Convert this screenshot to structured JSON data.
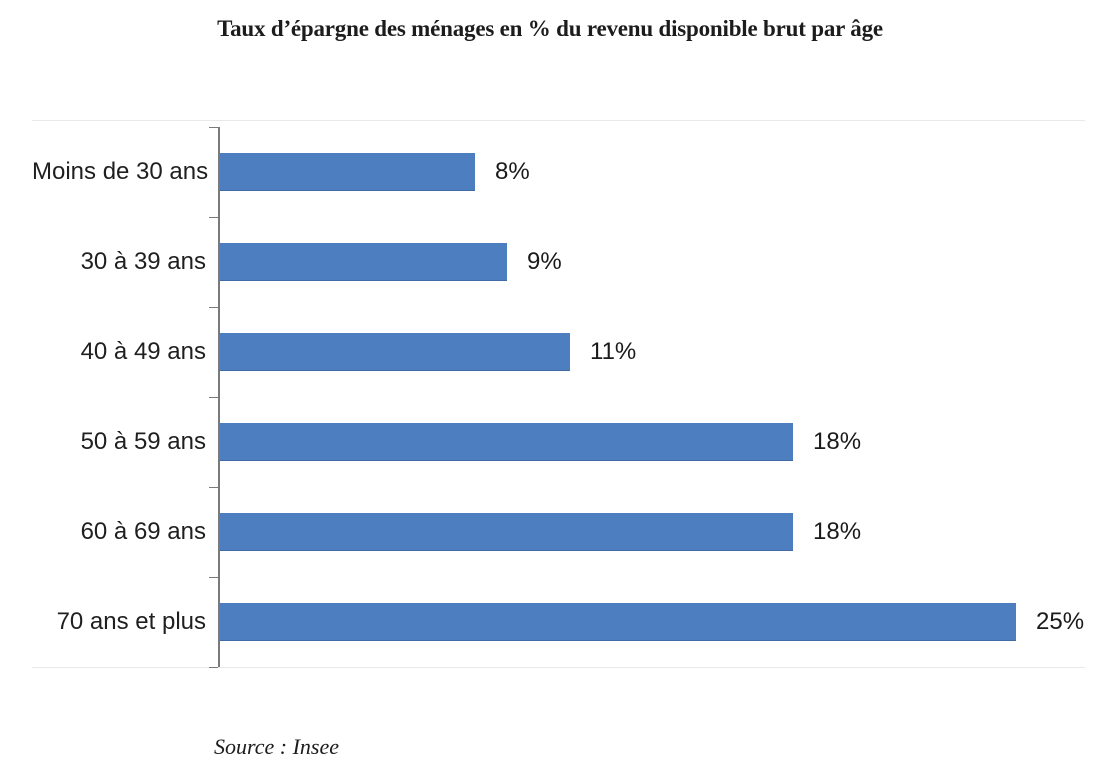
{
  "title": "Taux d’épargne des ménages en % du revenu disponible brut par âge",
  "source": "Source : Insee",
  "chart_data": {
    "type": "bar",
    "orientation": "horizontal",
    "title": "Taux d’épargne des ménages en % du revenu disponible brut par âge",
    "xlabel": "",
    "ylabel": "",
    "categories": [
      "Moins de 30 ans",
      "30 à 39 ans",
      "40 à 49 ans",
      "50 à 59 ans",
      "60 à 69 ans",
      "70 ans et plus"
    ],
    "values": [
      8,
      9,
      11,
      18,
      18,
      25
    ],
    "value_labels": [
      "8%",
      "9%",
      "11%",
      "18%",
      "18%",
      "25%"
    ],
    "unit": "%",
    "xlim": [
      0,
      27
    ],
    "grid": false,
    "legend": false,
    "data_labels": true,
    "annotations": [
      "Source : Insee"
    ],
    "colors": {
      "bar": "#4d7ec0",
      "bar_edge": "#416ba6",
      "axis": "#7a7a7a",
      "frame_line": "#e9e9e9",
      "text": "#1f1f1f",
      "background": "#ffffff"
    }
  }
}
